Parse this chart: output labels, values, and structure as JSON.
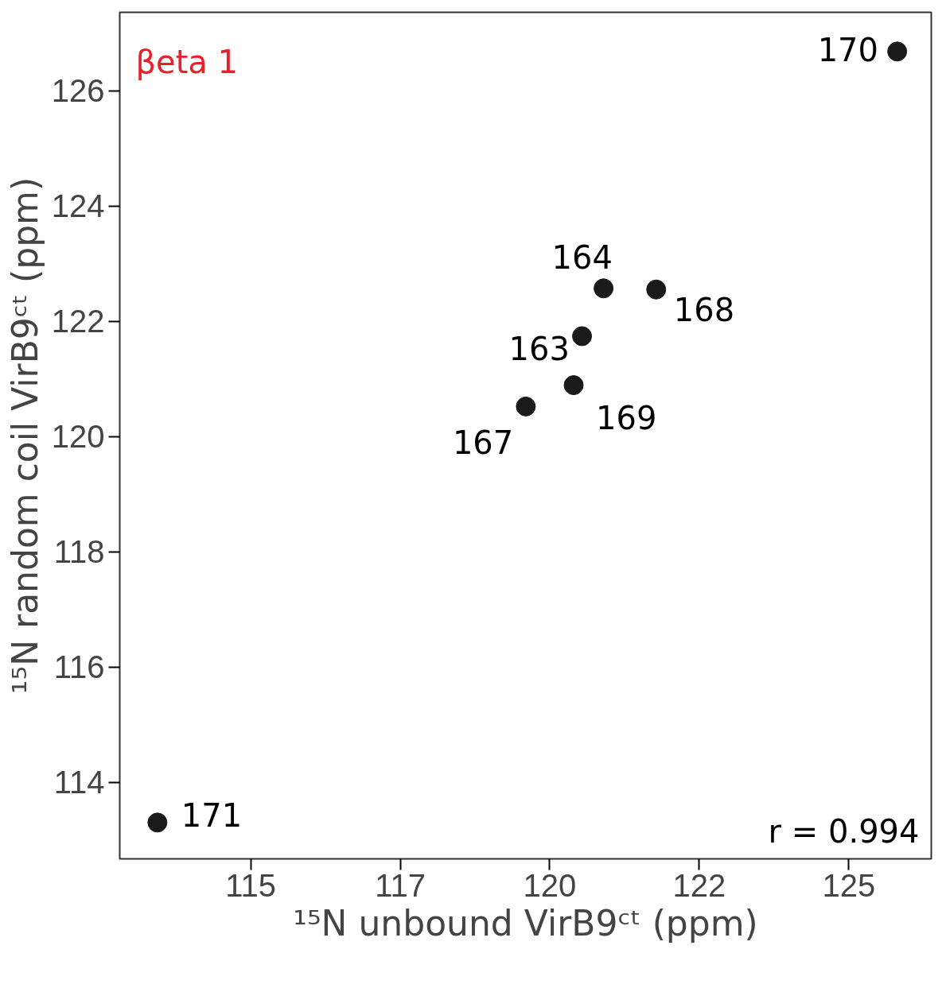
{
  "chart_data": {
    "type": "scatter",
    "xlabel": "¹⁵N unbound VirB9ᶜᵗ (ppm)",
    "ylabel": "¹⁵N random coil VirB9ᶜᵗ (ppm)",
    "x": [
      125.81,
      113.44,
      120.9,
      121.78,
      120.54,
      120.4,
      119.6
    ],
    "series": [
      {
        "color": "#1a1a1a",
        "values": [
          126.68,
          113.3,
          122.57,
          122.55,
          121.74,
          120.89,
          120.52
        ]
      }
    ],
    "xlim": [
      112.81,
      126.38
    ],
    "ylim": [
      112.67,
      127.36
    ],
    "xticks": [
      115,
      {
        "value": 117.5,
        "label": "117"
      },
      120,
      {
        "value": 122.5,
        "label": "122"
      },
      125
    ],
    "yticks": [
      114,
      116,
      118,
      120,
      122,
      124,
      126
    ],
    "marker": "circle",
    "grid": false,
    "annotations": [
      {
        "text": "170",
        "x": 125.81,
        "y": 126.68
      },
      {
        "text": "171",
        "x": 113.44,
        "y": 113.3
      },
      {
        "text": "164",
        "x": 120.9,
        "y": 122.57
      },
      {
        "text": "168",
        "x": 121.78,
        "y": 122.55
      },
      {
        "text": "163",
        "x": 120.54,
        "y": 121.74
      },
      {
        "text": "169",
        "x": 120.4,
        "y": 120.89
      },
      {
        "text": "167",
        "x": 119.6,
        "y": 120.52
      },
      "βeta 1",
      "r = 0.994"
    ]
  }
}
